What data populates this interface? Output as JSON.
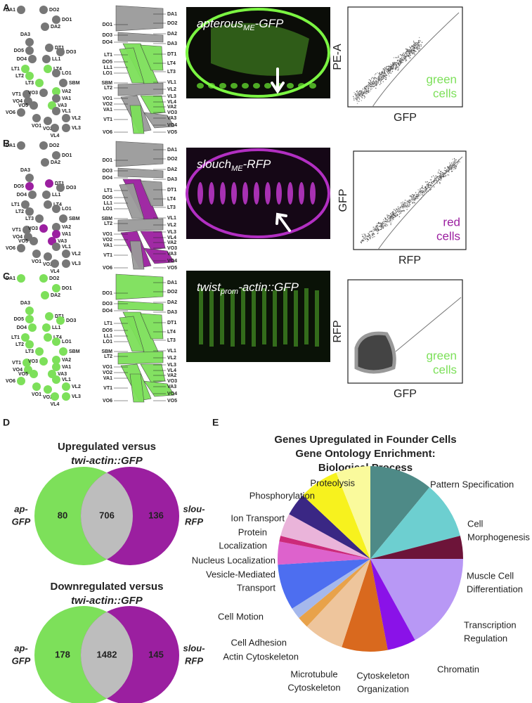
{
  "panels": [
    {
      "letter": "A",
      "image_label": {
        "gene": "apterous",
        "subscript": "ME",
        "suffix": "-GFP"
      },
      "plot": {
        "y_label": "PE-A",
        "x_label": "GFP",
        "legend": [
          "green",
          "cells"
        ]
      }
    },
    {
      "letter": "B",
      "image_label": {
        "gene": "slouch",
        "subscript": "ME",
        "suffix": "-RFP"
      },
      "plot": {
        "y_label": "GFP",
        "x_label": "RFP",
        "legend": [
          "red",
          "cells"
        ]
      }
    },
    {
      "letter": "C",
      "image_label": {
        "gene": "twist",
        "subscript": "prom",
        "suffix": "-actin::GFP"
      },
      "plot": {
        "y_label": "RFP",
        "x_label": "GFP",
        "legend": [
          "green",
          "cells"
        ]
      }
    }
  ],
  "schematic_labels": [
    "DA1",
    "DO2",
    "DO1",
    "DA2",
    "DA3",
    "DO5",
    "DT1",
    "DO3",
    "DO4",
    "LL1",
    "LT1",
    "LT4",
    "LT2",
    "LO1",
    "LT3",
    "SBM",
    "VT1",
    "VO3",
    "VA2",
    "VO4",
    "VA1",
    "VO5",
    "VA3",
    "VO6",
    "VL1",
    "VO1",
    "VO2",
    "VL2",
    "VL4",
    "VL3"
  ],
  "diagram_labels": {
    "left": [
      "DO1",
      "DO3",
      "DO4",
      "LT1",
      "DO5",
      "LL1",
      "LO1",
      "SBM",
      "LT2",
      "VO1",
      "VO2",
      "VA1",
      "VT1",
      "VO6"
    ],
    "right": [
      "DA1",
      "DO2",
      "DA2",
      "DA3",
      "DT1",
      "LT4",
      "LT3",
      "VL1",
      "VL2",
      "VL3",
      "VL4",
      "VA2",
      "VO3",
      "VA3",
      "VO4",
      "VO5"
    ]
  },
  "panel_d": {
    "letter": "D",
    "venns": [
      {
        "title": [
          "Upregulated versus",
          "twi-actin::GFP"
        ],
        "left_label": [
          "ap-",
          "GFP"
        ],
        "right_label": [
          "slou-",
          "RFP"
        ],
        "counts": [
          "80",
          "706",
          "136"
        ]
      },
      {
        "title": [
          "Downregulated versus",
          "twi-actin::GFP"
        ],
        "left_label": [
          "ap-",
          "GFP"
        ],
        "right_label": [
          "slou-",
          "RFP"
        ],
        "counts": [
          "178",
          "1482",
          "145"
        ]
      }
    ]
  },
  "panel_e": {
    "letter": "E",
    "type": "pie",
    "title": [
      "Genes Upregulated in Founder Cells",
      "Gene Ontology Enrichment:",
      "Biological Process"
    ],
    "slices": [
      {
        "label": [
          "Pattern Specification"
        ],
        "color": "#4e8a87",
        "value": 11
      },
      {
        "label": [
          "Cell",
          "Morphogenesis"
        ],
        "color": "#6dcfd0",
        "value": 10
      },
      {
        "label": [
          "Muscle Cell",
          "Differentiation"
        ],
        "color": "#6d1439",
        "value": 4
      },
      {
        "label": [
          "Transcription",
          "Regulation"
        ],
        "color": "#b898f5",
        "value": 17
      },
      {
        "label": [
          "Chromatin"
        ],
        "color": "#8a12e8",
        "value": 5
      },
      {
        "label": [
          "Cytoskeleton",
          "Organization"
        ],
        "color": "#d9691e",
        "value": 8
      },
      {
        "label": [
          "Microtubule",
          "Cytoskeleton"
        ],
        "color": "#eec59c",
        "value": 7
      },
      {
        "label": [
          "Actin Cytoskeleton"
        ],
        "color": "#e8a24a",
        "value": 2
      },
      {
        "label": [
          "Cell Adhesion"
        ],
        "color": "#a5b8ec",
        "value": 2
      },
      {
        "label": [
          "Cell Motion"
        ],
        "color": "#4d6ef0",
        "value": 8
      },
      {
        "label": [
          "Vesicle-Mediated",
          "Transport"
        ],
        "color": "#dd62cc",
        "value": 4
      },
      {
        "label": [
          "Nucleus Localization"
        ],
        "color": "#cc2a7a",
        "value": 1
      },
      {
        "label": [
          "Protein",
          "Localization"
        ],
        "color": "#eab4da",
        "value": 4
      },
      {
        "label": [
          "Ion Transport"
        ],
        "color": "#3a2784",
        "value": 4
      },
      {
        "label": [
          "Phosphorylation"
        ],
        "color": "#f7f21e",
        "value": 7
      },
      {
        "label": [
          "Proteolysis"
        ],
        "color": "#fafa9c",
        "value": 6
      }
    ]
  }
}
